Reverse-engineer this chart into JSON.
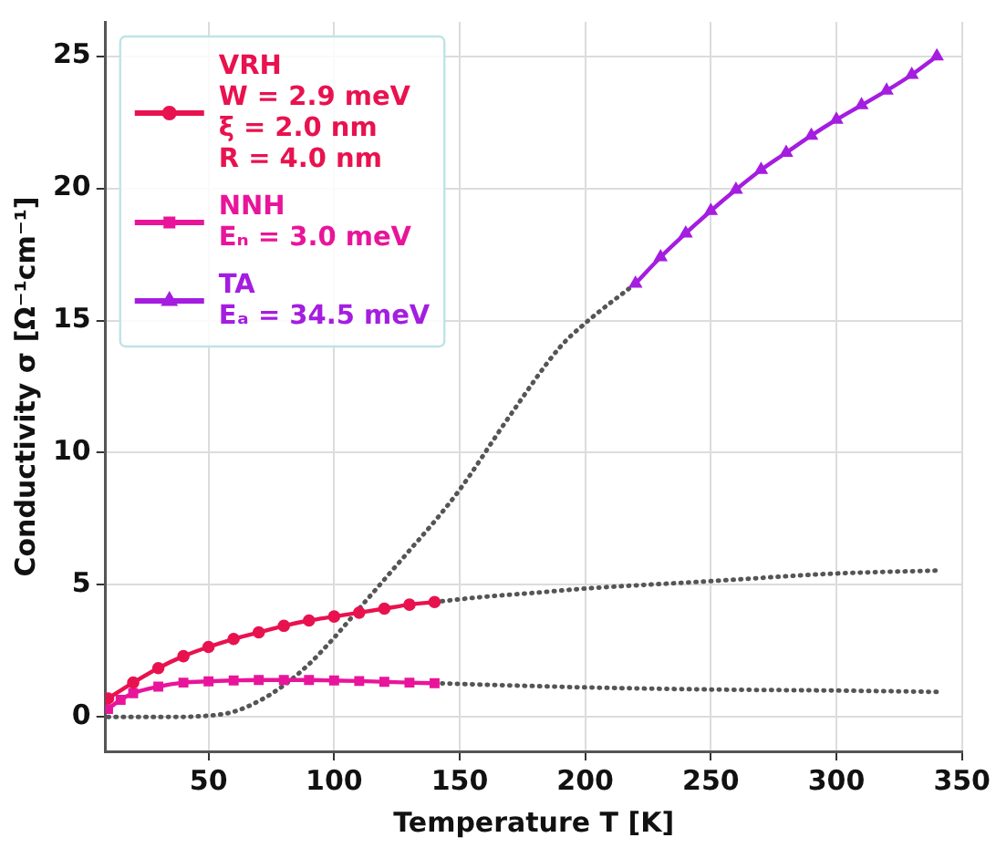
{
  "chart_data": {
    "type": "line",
    "xlabel": "Temperature T [K]",
    "ylabel": "Conductivity σ [Ω⁻¹cm⁻¹]",
    "xlim": [
      9,
      350
    ],
    "xticks": [
      50,
      100,
      150,
      200,
      250,
      300,
      350
    ],
    "ylim": [
      -1.3,
      26.3
    ],
    "yticks": [
      0,
      5,
      10,
      15,
      20,
      25
    ],
    "grid": true,
    "legend": "top left",
    "series": [
      {
        "name": "VRH\nW = 2.9 meV\nξ = 2.0 nm\nR = 4.0 nm",
        "color": "#e8124f",
        "marker": "circle",
        "line_style": "solid",
        "x": [
          10,
          20,
          30,
          40,
          50,
          60,
          70,
          80,
          90,
          100,
          110,
          120,
          130,
          140
        ],
        "values": [
          0.7,
          1.3,
          1.85,
          2.3,
          2.65,
          2.95,
          3.2,
          3.45,
          3.65,
          3.8,
          3.95,
          4.1,
          4.25,
          4.35
        ]
      },
      {
        "name": "NNH\nEₙ = 3.0 meV",
        "color": "#e8159a",
        "marker": "square",
        "line_style": "solid",
        "x": [
          10,
          15,
          20,
          30,
          40,
          50,
          60,
          70,
          80,
          90,
          100,
          110,
          120,
          130,
          140
        ],
        "values": [
          0.3,
          0.65,
          0.9,
          1.15,
          1.3,
          1.35,
          1.38,
          1.4,
          1.4,
          1.4,
          1.38,
          1.36,
          1.33,
          1.3,
          1.28
        ]
      },
      {
        "name": "TA\nEₐ = 34.5 meV",
        "color": "#a41de0",
        "marker": "triangle",
        "line_style": "solid",
        "x": [
          220,
          230,
          240,
          250,
          260,
          270,
          280,
          290,
          300,
          310,
          320,
          330,
          340
        ],
        "values": [
          16.4,
          17.4,
          18.3,
          19.15,
          19.95,
          20.7,
          21.35,
          22.0,
          22.6,
          23.15,
          23.7,
          24.3,
          25.0
        ]
      },
      {
        "color": "#555555",
        "marker": "none",
        "line_style": "dotted",
        "x": [
          140,
          160,
          180,
          200,
          250,
          300,
          340
        ],
        "values": [
          4.35,
          4.55,
          4.7,
          4.86,
          5.14,
          5.43,
          5.54
        ]
      },
      {
        "color": "#555555",
        "marker": "none",
        "line_style": "dotted",
        "x": [
          140,
          200,
          250,
          300,
          340
        ],
        "values": [
          1.28,
          1.12,
          1.04,
          1.0,
          0.95
        ]
      },
      {
        "color": "#555555",
        "marker": "none",
        "line_style": "dotted",
        "x": [
          10,
          30,
          50,
          60,
          70,
          80,
          90,
          100,
          110,
          120,
          130,
          140,
          150,
          170,
          190,
          200,
          220
        ],
        "values": [
          0,
          0,
          0.05,
          0.2,
          0.6,
          1.2,
          2.0,
          3.0,
          4.1,
          5.2,
          6.3,
          7.4,
          8.6,
          11.4,
          14.0,
          14.9,
          16.4
        ]
      }
    ]
  }
}
